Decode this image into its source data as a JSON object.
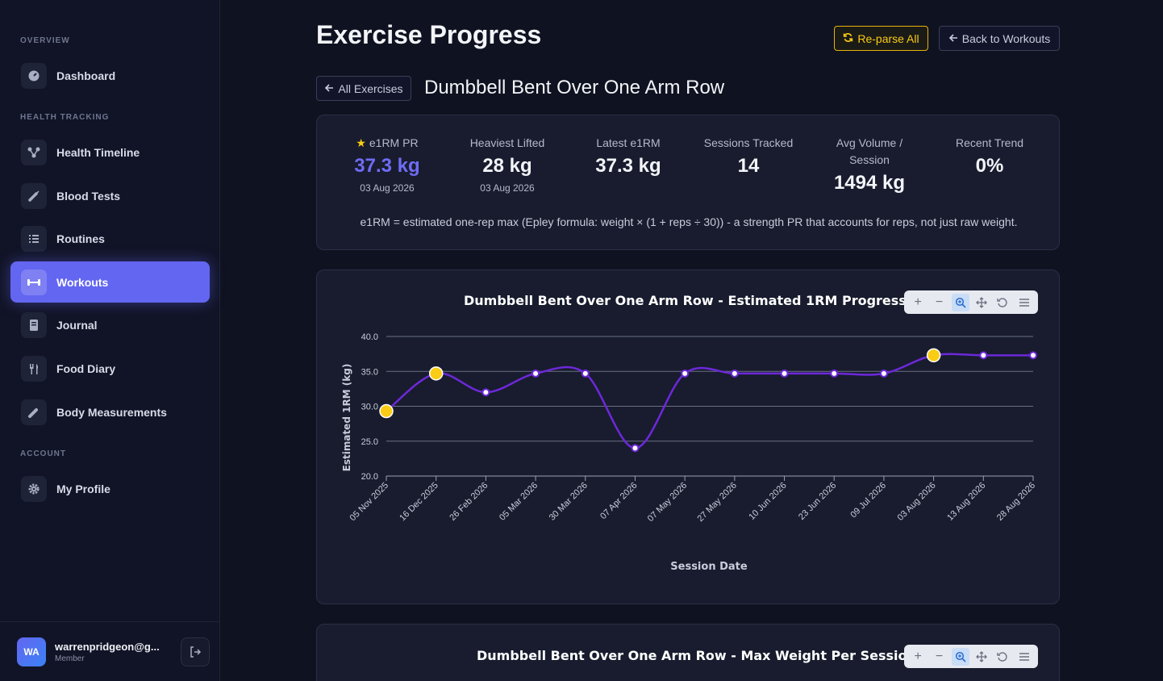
{
  "sidebar": {
    "sections": [
      {
        "title": "OVERVIEW"
      },
      {
        "title": "HEALTH TRACKING"
      },
      {
        "title": "ACCOUNT"
      }
    ],
    "items": [
      {
        "label": "Dashboard",
        "icon": "dashboard-icon"
      },
      {
        "label": "Health Timeline",
        "icon": "timeline-icon"
      },
      {
        "label": "Blood Tests",
        "icon": "syringe-icon"
      },
      {
        "label": "Routines",
        "icon": "list-icon"
      },
      {
        "label": "Workouts",
        "icon": "dumbbell-icon",
        "active": true
      },
      {
        "label": "Journal",
        "icon": "book-icon"
      },
      {
        "label": "Food Diary",
        "icon": "utensils-icon"
      },
      {
        "label": "Body Measurements",
        "icon": "ruler-icon"
      },
      {
        "label": "My Profile",
        "icon": "gear-icon"
      }
    ],
    "user": {
      "initials": "WA",
      "email": "warrenpridgeon@g...",
      "role": "Member"
    }
  },
  "header": {
    "title": "Exercise Progress",
    "reparse_label": "Re-parse All",
    "back_label": "Back to Workouts"
  },
  "exercise": {
    "all_label": "All Exercises",
    "name": "Dumbbell Bent Over One Arm Row"
  },
  "stats": [
    {
      "label": "e1RM PR",
      "value": "37.3 kg",
      "date": "03 Aug 2026"
    },
    {
      "label": "Heaviest Lifted",
      "value": "28 kg",
      "date": "03 Aug 2026"
    },
    {
      "label": "Latest e1RM",
      "value": "37.3 kg"
    },
    {
      "label": "Sessions Tracked",
      "value": "14"
    },
    {
      "label": "Avg Volume /",
      "label2": "Session",
      "value": "1494 kg"
    },
    {
      "label": "Recent Trend",
      "value": "0%"
    }
  ],
  "footnote": "e1RM = estimated one-rep max (Epley formula: weight × (1 + reps ÷ 30)) - a strength PR that accounts for reps, not just raw weight.",
  "colors": {
    "accent": "#6366f1",
    "line": "#6d28d9",
    "pr": "#facc15"
  },
  "chart_data": [
    {
      "type": "line",
      "title": "Dumbbell Bent Over One Arm Row - Estimated 1RM Progression",
      "xlabel": "Session Date",
      "ylabel": "Estimated 1RM (kg)",
      "ylim": [
        20,
        40
      ],
      "yticks": [
        "20.0",
        "25.0",
        "30.0",
        "35.0",
        "40.0"
      ],
      "grid": true,
      "x": [
        "05 Nov 2025",
        "16 Dec 2025",
        "26 Feb 2026",
        "05 Mar 2026",
        "30 Mar 2026",
        "07 Apr 2026",
        "07 May 2026",
        "27 May 2026",
        "10 Jun 2026",
        "23 Jun 2026",
        "09 Jul 2026",
        "03 Aug 2026",
        "13 Aug 2026",
        "28 Aug 2026"
      ],
      "series": [
        {
          "values": [
            29.3,
            34.7,
            32.0,
            34.7,
            34.7,
            24.0,
            34.7,
            34.7,
            34.7,
            34.7,
            34.7,
            37.3,
            37.3,
            37.3
          ],
          "pr_points": [
            0,
            1,
            11
          ]
        }
      ]
    },
    {
      "type": "line",
      "title": "Dumbbell Bent Over One Arm Row - Max Weight Per Session"
    }
  ],
  "toolbar": [
    "zoom-in-icon",
    "zoom-out-icon",
    "selection-zoom-icon",
    "pan-icon",
    "reset-icon",
    "menu-icon"
  ]
}
